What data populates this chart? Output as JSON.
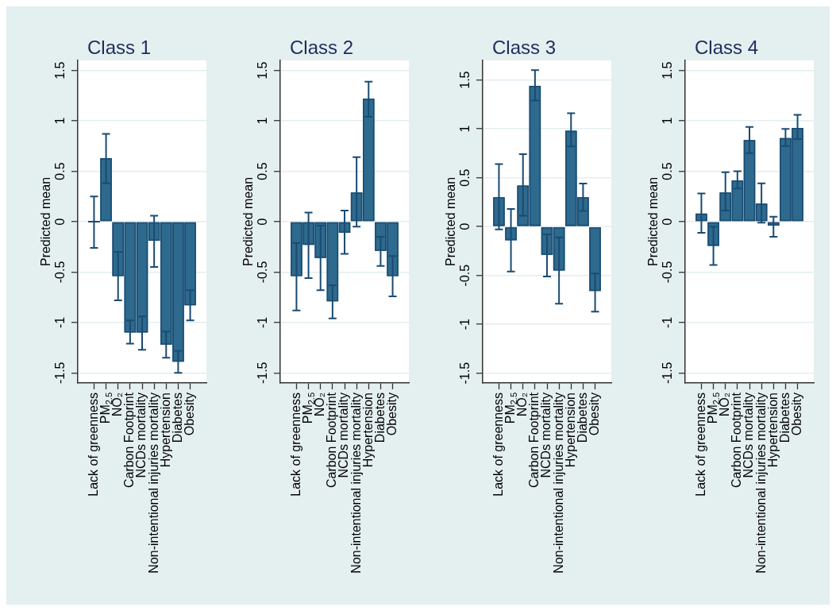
{
  "chart_data": [
    {
      "type": "bar",
      "title": "Class 1",
      "ylabel": "Predicted mean",
      "categories": [
        "Lack of greenness",
        "PM$_{2.5}$",
        "NO₂",
        "Carbon Footprint",
        "NCDs mortality",
        "Non-intentional injuries mortality",
        "Hypertension",
        "Diabetes",
        "Obesity"
      ],
      "values": [
        0,
        0.63,
        -0.54,
        -1.1,
        -1.1,
        -0.19,
        -1.22,
        -1.39,
        -0.83
      ],
      "errors": [
        [
          -0.26,
          0.25
        ],
        [
          0.38,
          0.87
        ],
        [
          -0.78,
          -0.3
        ],
        [
          -1.21,
          -0.98
        ],
        [
          -1.27,
          -0.94
        ],
        [
          -0.45,
          0.06
        ],
        [
          -1.35,
          -1.09
        ],
        [
          -1.5,
          -1.28
        ],
        [
          -0.98,
          -0.68
        ]
      ],
      "color": "#2e6a8d",
      "ylim": [
        -1.6,
        1.6
      ],
      "yticks": [
        -1.5,
        -1,
        -0.5,
        0,
        0.5,
        1,
        1.5
      ],
      "grid": "y"
    },
    {
      "type": "bar",
      "title": "Class 2",
      "ylabel": "Predicted mean",
      "categories": [
        "Lack of greenness",
        "PM$_{2.5}$",
        "NO₂",
        "Carbon Footprint",
        "NCDs mortality",
        "Non-intentional injuries mortality",
        "Hypertension",
        "Diabetes",
        "Obesity"
      ],
      "values": [
        -0.54,
        -0.23,
        -0.36,
        -0.79,
        -0.11,
        0.29,
        1.22,
        -0.29,
        -0.54
      ],
      "errors": [
        [
          -0.88,
          -0.21
        ],
        [
          -0.56,
          0.09
        ],
        [
          -0.68,
          -0.04
        ],
        [
          -0.96,
          -0.63
        ],
        [
          -0.32,
          0.11
        ],
        [
          -0.05,
          0.64
        ],
        [
          1.04,
          1.39
        ],
        [
          -0.44,
          -0.15
        ],
        [
          -0.74,
          -0.34
        ]
      ],
      "color": "#2e6a8d",
      "ylim": [
        -1.6,
        1.6
      ],
      "yticks": [
        -1.5,
        -1,
        -0.5,
        0,
        0.5,
        1,
        1.5
      ],
      "grid": "y"
    },
    {
      "type": "bar",
      "title": "Class 3",
      "ylabel": "Predicted mean",
      "categories": [
        "Lack of greenness",
        "PM$_{2.5}$",
        "NO₂",
        "Carbon Footprint",
        "NCDs mortality",
        "Non-intentional injuries mortality",
        "Hypertension",
        "Diabetes",
        "Obesity"
      ],
      "values": [
        0.3,
        -0.14,
        0.42,
        1.44,
        -0.29,
        -0.45,
        0.98,
        0.3,
        -0.66
      ],
      "errors": [
        [
          -0.03,
          0.64
        ],
        [
          -0.46,
          0.18
        ],
        [
          0.11,
          0.74
        ],
        [
          1.29,
          1.6
        ],
        [
          -0.51,
          -0.08
        ],
        [
          -0.79,
          -0.11
        ],
        [
          0.82,
          1.16
        ],
        [
          0.16,
          0.44
        ],
        [
          -0.87,
          -0.48
        ]
      ],
      "color": "#2e6a8d",
      "ylim": [
        -1.6,
        1.7
      ],
      "yticks": [
        -1.5,
        -1,
        -0.5,
        0,
        0.5,
        1,
        1.5
      ],
      "grid": "y"
    },
    {
      "type": "bar",
      "title": "Class 4",
      "ylabel": "Predicted mean",
      "categories": [
        "Lack of greenness",
        "PM$_{2.5}$",
        "NO₂",
        "Carbon Footprint",
        "NCDs mortality",
        "Non-intentional injuries mortality",
        "Hypertension",
        "Diabetes",
        "Obesity"
      ],
      "values": [
        0.08,
        -0.24,
        0.29,
        0.41,
        0.81,
        0.18,
        -0.04,
        0.83,
        0.93
      ],
      "errors": [
        [
          -0.11,
          0.28
        ],
        [
          -0.43,
          -0.05
        ],
        [
          0.11,
          0.49
        ],
        [
          0.33,
          0.5
        ],
        [
          0.68,
          0.94
        ],
        [
          -0.01,
          0.38
        ],
        [
          -0.15,
          0.05
        ],
        [
          0.75,
          0.92
        ],
        [
          0.82,
          1.06
        ]
      ],
      "color": "#2e6a8d",
      "ylim": [
        -1.6,
        1.6
      ],
      "yticks": [
        -1.5,
        -1,
        -0.5,
        0,
        0.5,
        1,
        1.5
      ],
      "grid": "y"
    }
  ]
}
